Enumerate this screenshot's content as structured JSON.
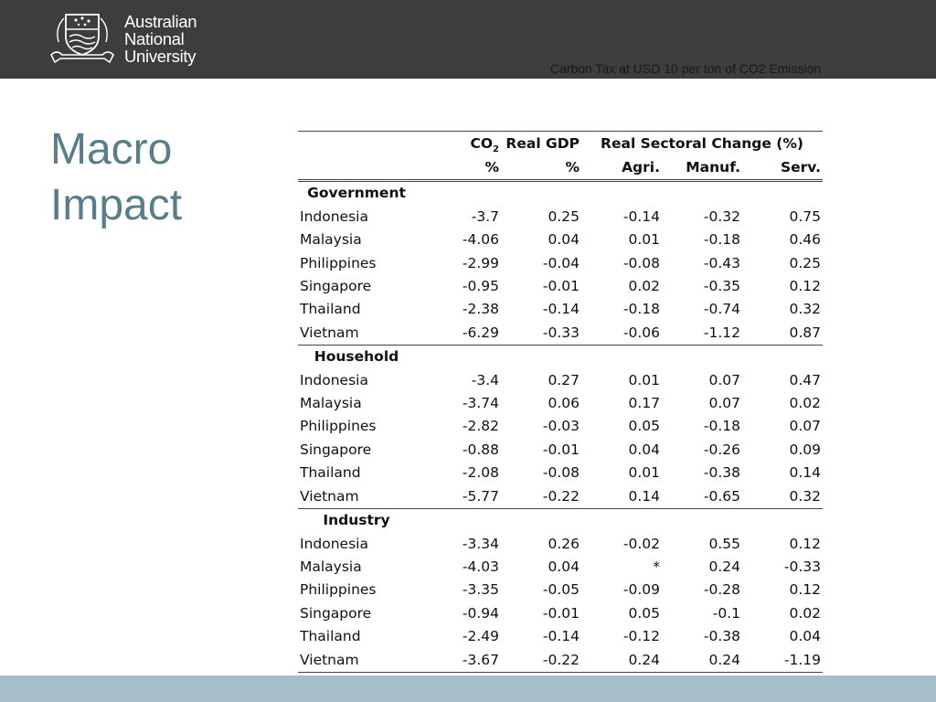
{
  "header": {
    "logo_lines": [
      "Australian",
      "National",
      "University"
    ],
    "subtitle": "Carbon Tax at USD 10 per ton of CO2 Emission"
  },
  "title_lines": [
    "Macro",
    "Impact"
  ],
  "table": {
    "header_row1": {
      "co2": "CO",
      "co2_sub": "2",
      "gdp": "Real GDP",
      "sectoral": "Real Sectoral Change (%)"
    },
    "header_row2": {
      "co2_unit": "%",
      "gdp_unit": "%",
      "agri": "Agri.",
      "manuf": "Manuf.",
      "serv": "Serv."
    },
    "groups": [
      {
        "name": "Government",
        "rows": [
          {
            "country": "Indonesia",
            "co2": "-3.7",
            "gdp": "0.25",
            "agri": "-0.14",
            "manuf": "-0.32",
            "serv": "0.75"
          },
          {
            "country": "Malaysia",
            "co2": "-4.06",
            "gdp": "0.04",
            "agri": "0.01",
            "manuf": "-0.18",
            "serv": "0.46"
          },
          {
            "country": "Philippines",
            "co2": "-2.99",
            "gdp": "-0.04",
            "agri": "-0.08",
            "manuf": "-0.43",
            "serv": "0.25"
          },
          {
            "country": "Singapore",
            "co2": "-0.95",
            "gdp": "-0.01",
            "agri": "0.02",
            "manuf": "-0.35",
            "serv": "0.12"
          },
          {
            "country": "Thailand",
            "co2": "-2.38",
            "gdp": "-0.14",
            "agri": "-0.18",
            "manuf": "-0.74",
            "serv": "0.32"
          },
          {
            "country": "Vietnam",
            "co2": "-6.29",
            "gdp": "-0.33",
            "agri": "-0.06",
            "manuf": "-1.12",
            "serv": "0.87"
          }
        ]
      },
      {
        "name": "Household",
        "rows": [
          {
            "country": "Indonesia",
            "co2": "-3.4",
            "gdp": "0.27",
            "agri": "0.01",
            "manuf": "0.07",
            "serv": "0.47"
          },
          {
            "country": "Malaysia",
            "co2": "-3.74",
            "gdp": "0.06",
            "agri": "0.17",
            "manuf": "0.07",
            "serv": "0.02"
          },
          {
            "country": "Philippines",
            "co2": "-2.82",
            "gdp": "-0.03",
            "agri": "0.05",
            "manuf": "-0.18",
            "serv": "0.07"
          },
          {
            "country": "Singapore",
            "co2": "-0.88",
            "gdp": "-0.01",
            "agri": "0.04",
            "manuf": "-0.26",
            "serv": "0.09"
          },
          {
            "country": "Thailand",
            "co2": "-2.08",
            "gdp": "-0.08",
            "agri": "0.01",
            "manuf": "-0.38",
            "serv": "0.14"
          },
          {
            "country": "Vietnam",
            "co2": "-5.77",
            "gdp": "-0.22",
            "agri": "0.14",
            "manuf": "-0.65",
            "serv": "0.32"
          }
        ]
      },
      {
        "name": "Industry",
        "rows": [
          {
            "country": "Indonesia",
            "co2": "-3.34",
            "gdp": "0.26",
            "agri": "-0.02",
            "manuf": "0.55",
            "serv": "0.12"
          },
          {
            "country": "Malaysia",
            "co2": "-4.03",
            "gdp": "0.04",
            "agri": "*",
            "manuf": "0.24",
            "serv": "-0.33"
          },
          {
            "country": "Philippines",
            "co2": "-3.35",
            "gdp": "-0.05",
            "agri": "-0.09",
            "manuf": "-0.28",
            "serv": "0.12"
          },
          {
            "country": "Singapore",
            "co2": "-0.94",
            "gdp": "-0.01",
            "agri": "0.05",
            "manuf": "-0.1",
            "serv": "0.02"
          },
          {
            "country": "Thailand",
            "co2": "-2.49",
            "gdp": "-0.14",
            "agri": "-0.12",
            "manuf": "-0.38",
            "serv": "0.04"
          },
          {
            "country": "Vietnam",
            "co2": "-3.67",
            "gdp": "-0.22",
            "agri": "0.24",
            "manuf": "0.24",
            "serv": "-1.19"
          }
        ]
      }
    ]
  }
}
